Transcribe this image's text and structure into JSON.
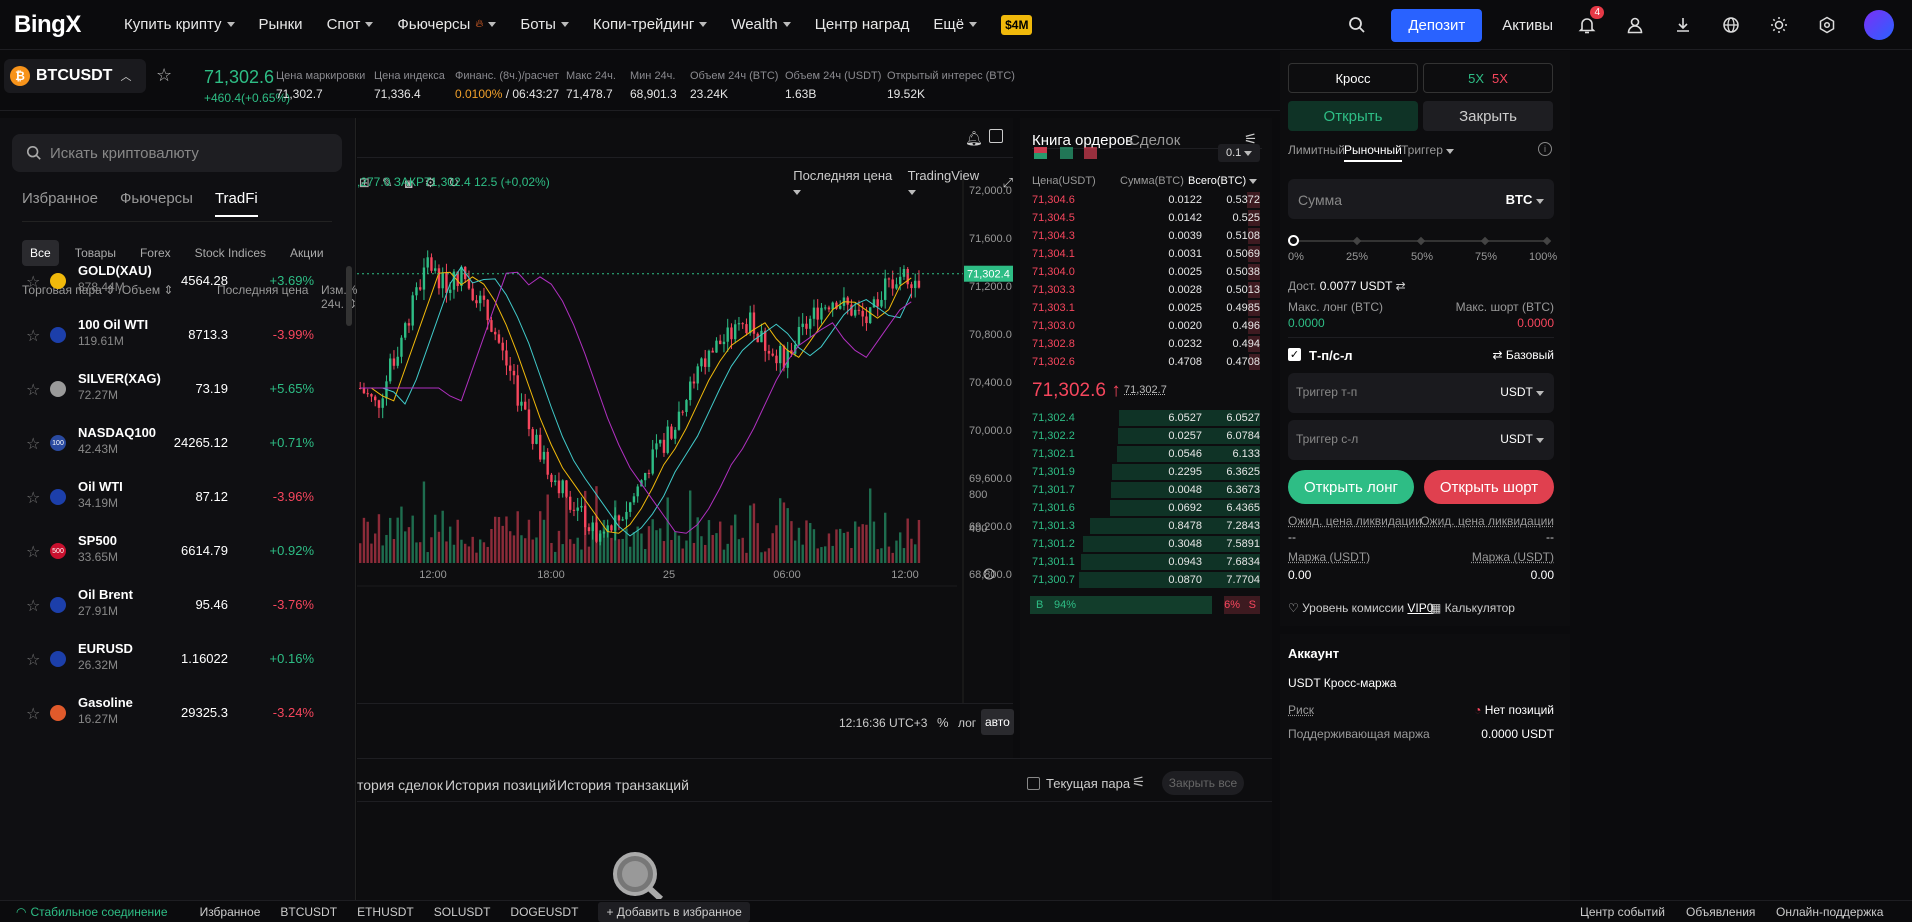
{
  "header": {
    "logo": "BingX",
    "nav": [
      {
        "label": "Купить крипту",
        "caret": true
      },
      {
        "label": "Рынки",
        "caret": false
      },
      {
        "label": "Спот",
        "caret": true
      },
      {
        "label": "Фьючерсы",
        "caret": true
      },
      {
        "label": "Боты",
        "caret": true
      },
      {
        "label": "Копи-трейдинг",
        "caret": true
      },
      {
        "label": "Wealth",
        "caret": true
      },
      {
        "label": "Центр наград",
        "caret": false
      },
      {
        "label": "Ещё",
        "caret": true
      }
    ],
    "promo_badge": "$4M",
    "deposit": "Депозит",
    "assets": "Активы",
    "notifications": "4"
  },
  "ticker": {
    "pair": "BTCUSDT",
    "price": "71,302.6",
    "change": "+460.4(+0.65%)",
    "stats": [
      {
        "label": "Цена маркировки",
        "value": "71,302.7"
      },
      {
        "label": "Цена индекса",
        "value": "71,336.4"
      },
      {
        "label": "Финанс. (8ч.)/расчет",
        "value": "0.0100% / 06:43:27"
      },
      {
        "label": "Макс 24ч.",
        "value": "71,478.7"
      },
      {
        "label": "Мин 24ч.",
        "value": "68,901.3"
      },
      {
        "label": "Объем 24ч (BTC)",
        "value": "23.24K"
      },
      {
        "label": "Объем 24ч (USDT)",
        "value": "1.63B"
      },
      {
        "label": "Открытый интерес (BTC)",
        "value": "19.52K"
      }
    ]
  },
  "sidebar": {
    "search_placeholder": "Искать криптовалюту",
    "tabs": [
      "Избранное",
      "Фьючерсы",
      "TradFi"
    ],
    "filters": [
      "Все",
      "Товары",
      "Forex",
      "Stock Indices",
      "Акции"
    ],
    "col_pair": "Торговая пара",
    "col_volume": "Объем",
    "col_price": "Последняя цена",
    "col_change": "Изм.% 24ч.",
    "rows": [
      {
        "name": "GOLD(XAU)",
        "vol": "878.44M",
        "price": "4564.28",
        "change": "+3.69%",
        "color": "#f0b90b",
        "icon": ""
      },
      {
        "name": "100 Oil WTI",
        "vol": "119.61M",
        "price": "8713.3",
        "change": "-3.99%",
        "color": "#1c3faa",
        "icon": ""
      },
      {
        "name": "SILVER(XAG)",
        "vol": "72.27M",
        "price": "73.19",
        "change": "+5.65%",
        "color": "#9a9a9a",
        "icon": ""
      },
      {
        "name": "NASDAQ100",
        "vol": "42.43M",
        "price": "24265.12",
        "change": "+0.71%",
        "color": "#2a4aa0",
        "icon": "100"
      },
      {
        "name": "Oil WTI",
        "vol": "34.19M",
        "price": "87.12",
        "change": "-3.96%",
        "color": "#1c3faa",
        "icon": ""
      },
      {
        "name": "SP500",
        "vol": "33.65M",
        "price": "6614.79",
        "change": "+0.92%",
        "color": "#c8102e",
        "icon": "500"
      },
      {
        "name": "Oil Brent",
        "vol": "27.91M",
        "price": "95.46",
        "change": "-3.76%",
        "color": "#1c3faa",
        "icon": ""
      },
      {
        "name": "EURUSD",
        "vol": "26.32M",
        "price": "1.16022",
        "change": "+0.16%",
        "color": "#1c3faa",
        "icon": ""
      },
      {
        "name": "Gasoline",
        "vol": "16.27M",
        "price": "29325.3",
        "change": "-3.24%",
        "color": "#e05a2b",
        "icon": ""
      }
    ]
  },
  "chart": {
    "price_source": "Последняя цена",
    "view": "TradingView",
    "ohlc_line": ",277.0  ЗАКР71,302.4  12.5 (+0,02%)",
    "yticks": [
      "72,000.0",
      "71,600.0",
      "71,200.0",
      "70,800.0",
      "70,400.0",
      "70,000.0",
      "69,600.0",
      "69,200.0",
      "68,800.0"
    ],
    "current_price_tag": "71,302.4",
    "vol_ticks": [
      "800",
      "400"
    ],
    "xticks": [
      "12:00",
      "18:00",
      "25",
      "06:00",
      "12:00"
    ],
    "time": "12:16:36 UTC+3",
    "scale_pct": "%",
    "scale_log": "лог",
    "scale_auto": "авто"
  },
  "orderbook": {
    "tab_book": "Книга ордеров",
    "tab_trades": "Сделок",
    "depth": "0.1",
    "col_price": "Цена(USDT)",
    "col_amount": "Сумма(BTC)",
    "col_total": "Всего(BTC)",
    "asks": [
      [
        "71,304.6",
        "0.0122",
        "0.5372"
      ],
      [
        "71,304.5",
        "0.0142",
        "0.525"
      ],
      [
        "71,304.3",
        "0.0039",
        "0.5108"
      ],
      [
        "71,304.1",
        "0.0031",
        "0.5069"
      ],
      [
        "71,304.0",
        "0.0025",
        "0.5038"
      ],
      [
        "71,303.3",
        "0.0028",
        "0.5013"
      ],
      [
        "71,303.1",
        "0.0025",
        "0.4985"
      ],
      [
        "71,303.0",
        "0.0020",
        "0.496"
      ],
      [
        "71,302.8",
        "0.0232",
        "0.494"
      ],
      [
        "71,302.6",
        "0.4708",
        "0.4708"
      ]
    ],
    "last": "71,302.6",
    "mark": "71,302.7",
    "bids": [
      [
        "71,302.4",
        "6.0527",
        "6.0527"
      ],
      [
        "71,302.2",
        "0.0257",
        "6.0784"
      ],
      [
        "71,302.1",
        "0.0546",
        "6.133"
      ],
      [
        "71,301.9",
        "0.2295",
        "6.3625"
      ],
      [
        "71,301.7",
        "0.0048",
        "6.3673"
      ],
      [
        "71,301.6",
        "0.0692",
        "6.4365"
      ],
      [
        "71,301.3",
        "0.8478",
        "7.2843"
      ],
      [
        "71,301.2",
        "0.3048",
        "7.5891"
      ],
      [
        "71,301.1",
        "0.0943",
        "7.6834"
      ],
      [
        "71,300.7",
        "0.0870",
        "7.7704"
      ]
    ],
    "buy_label": "B",
    "buy_pct": "94%",
    "sell_pct": "6%",
    "sell_label": "S",
    "buy_ratio": 0.94
  },
  "trade": {
    "cross": "Кросс",
    "lev_long": "5X",
    "lev_short": "5X",
    "open": "Открыть",
    "close": "Закрыть",
    "order_types": [
      "Лимитный",
      "Рыночный",
      "Триггер"
    ],
    "amount_placeholder": "Сумма",
    "amount_unit": "BTC",
    "slider_marks": [
      "0%",
      "25%",
      "50%",
      "75%",
      "100%"
    ],
    "avail_label": "Дост.",
    "avail_value": "0.0077 USDT",
    "max_long_label": "Макс. лонг (BTC)",
    "max_long": "0.0000",
    "max_short_label": "Макс. шорт (BTC)",
    "max_short": "0.0000",
    "tpsl": "Т-п/с-л",
    "basic": "Базовый",
    "tp_placeholder": "Триггер т-п",
    "sl_placeholder": "Триггер с-л",
    "unit_usdt": "USDT",
    "open_long": "Открыть лонг",
    "open_short": "Открыть шорт",
    "liq_long": "Ожид. цена ликвидации",
    "liq_short": "Ожид. цена ликвидации",
    "liq_long_val": "--",
    "liq_short_val": "--",
    "margin_long": "Маржа (USDT)",
    "margin_short": "Маржа (USDT)",
    "margin_long_val": "0.00",
    "margin_short_val": "0.00",
    "fee_level": "Уровень комиссии",
    "vip": "VIP0",
    "calculator": "Калькулятор",
    "account": "Аккаунт",
    "account_type": "USDT Кросс-маржа",
    "risk": "Риск",
    "risk_value": "Нет позиций",
    "maint_margin": "Поддерживающая маржа",
    "maint_value": "0.0000 USDT"
  },
  "bottom": {
    "tabs": [
      "тория сделок",
      "История позиций",
      "История транзакций"
    ],
    "current_pair": "Текущая пара",
    "close_all": "Закрыть все"
  },
  "status": {
    "connection": "Стабильное соединение",
    "favorites": "Избранное",
    "pairs": [
      "BTCUSDT",
      "ETHUSDT",
      "SOLUSDT",
      "DOGEUSDT"
    ],
    "add_fav": "Добавить в избранное",
    "right": [
      "Центр событий",
      "Объявления",
      "Онлайн-поддержка"
    ]
  }
}
